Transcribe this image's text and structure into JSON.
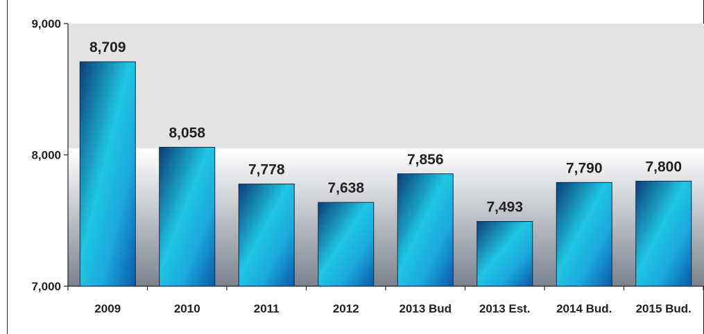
{
  "chart_data": {
    "type": "bar",
    "categories": [
      "2009",
      "2010",
      "2011",
      "2012",
      "2013 Bud",
      "2013 Est.",
      "2014 Bud.",
      "2015 Bud."
    ],
    "values": [
      8709,
      8058,
      7778,
      7638,
      7856,
      7493,
      7790,
      7800
    ],
    "value_labels": [
      "8,709",
      "8,058",
      "7,778",
      "7,638",
      "7,856",
      "7,493",
      "7,790",
      "7,800"
    ],
    "ylim": [
      7000,
      9000
    ],
    "yticks": [
      7000,
      8000,
      9000
    ],
    "ytick_labels": [
      "7,000",
      "8,000",
      "9,000"
    ],
    "grid": false,
    "colors": {
      "bar_dark": "#0a4f86",
      "bar_mid": "#1ab7dc",
      "bar_light": "#2ad8ea",
      "plot_bg_top": "#e4e4e4",
      "plot_bg_bottom": "#7f8590",
      "axis": "#222222",
      "text": "#222222"
    }
  }
}
